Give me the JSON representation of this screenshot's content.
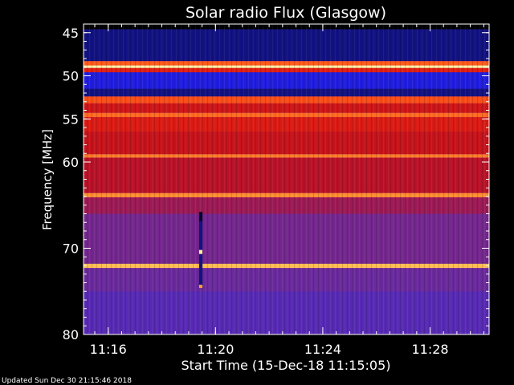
{
  "footer": {
    "updated": "Updated Sun Dec 30 21:15:46 2018"
  },
  "chart_data": {
    "type": "heatmap",
    "title": "Solar radio Flux (Glasgow)",
    "xlabel": "Start Time (15-Dec-18 11:15:05)",
    "ylabel": "Frequency [MHz]",
    "x_ticks": [
      "11:16",
      "11:20",
      "11:24",
      "11:28"
    ],
    "x_tick_minutes": [
      16,
      20,
      24,
      28
    ],
    "x_range_minutes": [
      15.08,
      30.2
    ],
    "y_ticks": [
      45,
      50,
      55,
      60,
      70,
      80
    ],
    "y_range": [
      44,
      80
    ],
    "grid": false,
    "colormap": [
      "#000000",
      "#10106a",
      "#1a1ae0",
      "#3b2bd8",
      "#6a2a9c",
      "#9c1a55",
      "#c0101d",
      "#e01e12",
      "#ff5a1a",
      "#ffb040",
      "#fff0a0"
    ],
    "bands": [
      {
        "f_from": 44.0,
        "f_to": 44.6,
        "level": 0.0
      },
      {
        "f_from": 44.6,
        "f_to": 48.3,
        "level": 0.12
      },
      {
        "f_from": 48.3,
        "f_to": 48.8,
        "level": 0.8
      },
      {
        "f_from": 48.8,
        "f_to": 49.1,
        "level": 1.0
      },
      {
        "f_from": 49.1,
        "f_to": 49.6,
        "level": 0.7
      },
      {
        "f_from": 49.6,
        "f_to": 51.5,
        "level": 0.22
      },
      {
        "f_from": 51.5,
        "f_to": 52.4,
        "level": 0.12
      },
      {
        "f_from": 52.4,
        "f_to": 53.2,
        "level": 0.78
      },
      {
        "f_from": 53.2,
        "f_to": 54.3,
        "level": 0.64
      },
      {
        "f_from": 54.3,
        "f_to": 54.8,
        "level": 0.82
      },
      {
        "f_from": 54.8,
        "f_to": 56.5,
        "level": 0.68
      },
      {
        "f_from": 56.5,
        "f_to": 59.1,
        "level": 0.62
      },
      {
        "f_from": 59.1,
        "f_to": 59.5,
        "level": 0.84
      },
      {
        "f_from": 59.5,
        "f_to": 63.6,
        "level": 0.58
      },
      {
        "f_from": 63.6,
        "f_to": 64.1,
        "level": 0.86
      },
      {
        "f_from": 64.1,
        "f_to": 66.0,
        "level": 0.5
      },
      {
        "f_from": 66.0,
        "f_to": 71.8,
        "level": 0.42
      },
      {
        "f_from": 71.8,
        "f_to": 72.3,
        "level": 0.92
      },
      {
        "f_from": 72.3,
        "f_to": 75.0,
        "level": 0.4
      },
      {
        "f_from": 75.0,
        "f_to": 80.0,
        "level": 0.36
      }
    ],
    "burst": {
      "minute": 19.45,
      "f_from": 65.8,
      "f_to": 74.6
    }
  }
}
